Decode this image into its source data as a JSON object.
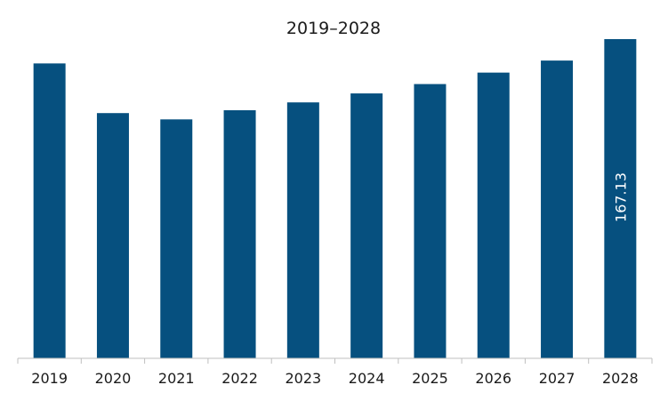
{
  "chart_data": {
    "type": "bar",
    "title": "2019–2028",
    "xlabel": "",
    "ylabel": "",
    "categories": [
      "2019",
      "2020",
      "2021",
      "2022",
      "2023",
      "2024",
      "2025",
      "2026",
      "2027",
      "2028"
    ],
    "values": [
      154.4,
      128.4,
      125.1,
      129.9,
      134.0,
      138.7,
      143.6,
      149.6,
      155.9,
      167.13
    ],
    "data_labels": [
      {
        "category": "2028",
        "text": "167.13"
      }
    ],
    "ylim": [
      0,
      175
    ],
    "grid": false,
    "legend": "none",
    "colors": {
      "bar": "#06507f",
      "axis": "#bfbfbf",
      "label": "#ffffff"
    }
  }
}
